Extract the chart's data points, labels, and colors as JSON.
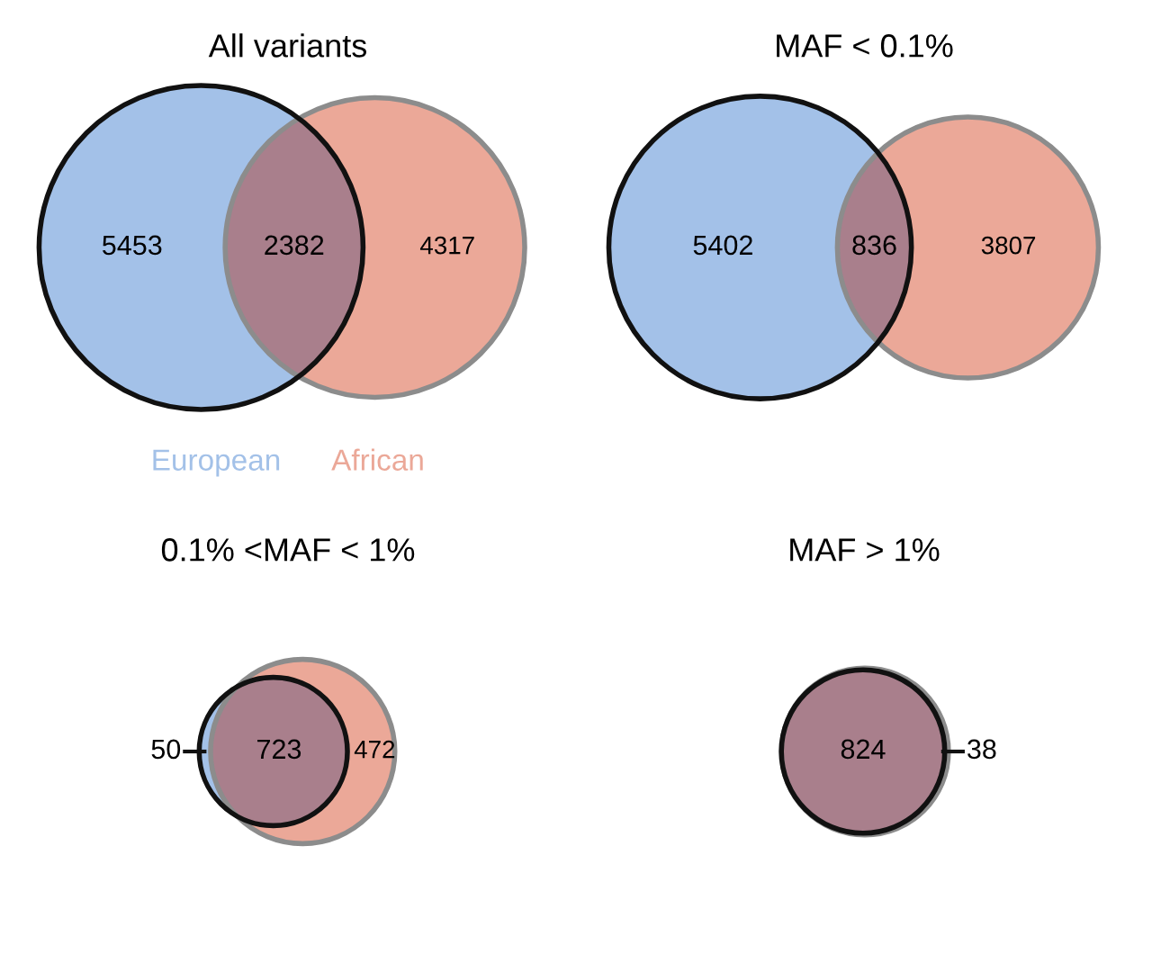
{
  "chart_data": [
    {
      "type": "other",
      "title": "All variants",
      "values": [
        5453,
        2382,
        4317
      ],
      "colors": [
        "#a3c1e8",
        "#eba898",
        "#a97f8c"
      ],
      "data_labels": true,
      "annotations": [
        "European",
        "African"
      ]
    },
    {
      "type": "other",
      "title": "MAF < 0.1%",
      "values": [
        5402,
        836,
        3807
      ],
      "colors": [
        "#a3c1e8",
        "#eba898",
        "#a97f8c"
      ],
      "data_labels": true
    },
    {
      "type": "other",
      "title": "0.1% <MAF < 1%",
      "values": [
        50,
        723,
        472
      ],
      "colors": [
        "#a3c1e8",
        "#eba898",
        "#a97f8c"
      ],
      "data_labels": true
    },
    {
      "type": "other",
      "title": "MAF > 1%",
      "values": [
        null,
        824,
        38
      ],
      "colors": [
        "#a3c1e8",
        "#eba898",
        "#a97f8c"
      ],
      "data_labels": true
    }
  ]
}
